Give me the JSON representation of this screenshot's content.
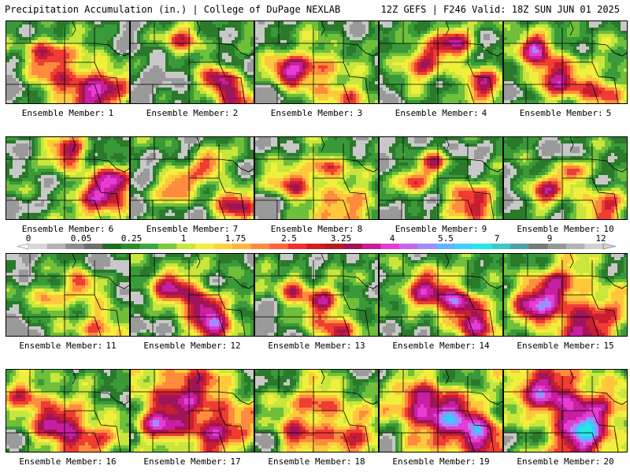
{
  "header": {
    "left_title": "Precipitation Accumulation (in.) | College of DuPage NEXLAB",
    "right_title": "12Z GEFS | F246 Valid: 18Z SUN JUN 01 2025"
  },
  "member_label": "Ensemble Member:",
  "members": [
    {
      "number": "1",
      "intensity": 0.45,
      "seed": 11,
      "hot": [
        [
          0.55,
          0.72,
          0.2
        ],
        [
          0.3,
          0.35,
          0.12
        ],
        [
          0.8,
          0.88,
          0.14
        ]
      ]
    },
    {
      "number": "2",
      "intensity": 0.4,
      "seed": 23,
      "hot": [
        [
          0.45,
          0.2,
          0.12
        ],
        [
          0.7,
          0.7,
          0.1
        ],
        [
          0.85,
          0.9,
          0.14
        ]
      ]
    },
    {
      "number": "3",
      "intensity": 0.55,
      "seed": 37,
      "hot": [
        [
          0.45,
          0.55,
          0.14
        ],
        [
          0.75,
          0.95,
          0.12
        ],
        [
          0.25,
          0.6,
          0.1
        ]
      ]
    },
    {
      "number": "4",
      "intensity": 0.55,
      "seed": 41,
      "hot": [
        [
          0.35,
          0.45,
          0.14
        ],
        [
          0.8,
          0.75,
          0.12
        ],
        [
          0.6,
          0.2,
          0.1
        ]
      ]
    },
    {
      "number": "5",
      "intensity": 0.62,
      "seed": 53,
      "hot": [
        [
          0.4,
          0.65,
          0.16
        ],
        [
          0.8,
          0.85,
          0.12
        ],
        [
          0.25,
          0.3,
          0.1
        ]
      ]
    },
    {
      "number": "6",
      "intensity": 0.5,
      "seed": 67,
      "hot": [
        [
          0.5,
          0.15,
          0.12
        ],
        [
          0.75,
          0.75,
          0.18
        ],
        [
          0.88,
          0.5,
          0.1
        ]
      ]
    },
    {
      "number": "7",
      "intensity": 0.45,
      "seed": 71,
      "hot": [
        [
          0.35,
          0.6,
          0.12
        ],
        [
          0.85,
          0.8,
          0.14
        ],
        [
          0.65,
          0.3,
          0.1
        ]
      ]
    },
    {
      "number": "8",
      "intensity": 0.5,
      "seed": 83,
      "hot": [
        [
          0.3,
          0.55,
          0.12
        ],
        [
          0.75,
          0.85,
          0.16
        ],
        [
          0.55,
          0.35,
          0.1
        ]
      ]
    },
    {
      "number": "9",
      "intensity": 0.42,
      "seed": 97,
      "hot": [
        [
          0.75,
          0.8,
          0.16
        ],
        [
          0.25,
          0.55,
          0.1
        ],
        [
          0.45,
          0.3,
          0.08
        ]
      ]
    },
    {
      "number": "10",
      "intensity": 0.45,
      "seed": 101,
      "hot": [
        [
          0.3,
          0.65,
          0.12
        ],
        [
          0.8,
          0.8,
          0.14
        ],
        [
          0.55,
          0.4,
          0.08
        ]
      ]
    },
    {
      "number": "11",
      "intensity": 0.42,
      "seed": 113,
      "hot": [
        [
          0.75,
          0.9,
          0.14
        ],
        [
          0.35,
          0.55,
          0.1
        ],
        [
          0.6,
          0.35,
          0.1
        ]
      ]
    },
    {
      "number": "12",
      "intensity": 0.55,
      "seed": 127,
      "hot": [
        [
          0.65,
          0.9,
          0.16
        ],
        [
          0.35,
          0.4,
          0.14
        ],
        [
          0.6,
          0.6,
          0.1
        ]
      ]
    },
    {
      "number": "13",
      "intensity": 0.5,
      "seed": 131,
      "hot": [
        [
          0.65,
          0.9,
          0.14
        ],
        [
          0.3,
          0.4,
          0.1
        ],
        [
          0.55,
          0.55,
          0.1
        ]
      ]
    },
    {
      "number": "14",
      "intensity": 0.58,
      "seed": 149,
      "hot": [
        [
          0.4,
          0.45,
          0.16
        ],
        [
          0.8,
          0.85,
          0.14
        ],
        [
          0.65,
          0.55,
          0.1
        ]
      ]
    },
    {
      "number": "15",
      "intensity": 0.68,
      "seed": 157,
      "hot": [
        [
          0.7,
          0.85,
          0.2
        ],
        [
          0.4,
          0.4,
          0.16
        ],
        [
          0.2,
          0.7,
          0.12
        ]
      ]
    },
    {
      "number": "16",
      "intensity": 0.62,
      "seed": 163,
      "hot": [
        [
          0.6,
          0.85,
          0.18
        ],
        [
          0.15,
          0.3,
          0.12
        ],
        [
          0.4,
          0.6,
          0.12
        ]
      ]
    },
    {
      "number": "17",
      "intensity": 0.75,
      "seed": 179,
      "hot": [
        [
          0.4,
          0.25,
          0.2
        ],
        [
          0.7,
          0.7,
          0.18
        ],
        [
          0.2,
          0.7,
          0.12
        ]
      ]
    },
    {
      "number": "18",
      "intensity": 0.6,
      "seed": 181,
      "hot": [
        [
          0.5,
          0.4,
          0.14
        ],
        [
          0.8,
          0.85,
          0.16
        ],
        [
          0.3,
          0.8,
          0.12
        ]
      ]
    },
    {
      "number": "19",
      "intensity": 0.72,
      "seed": 191,
      "hot": [
        [
          0.55,
          0.6,
          0.2
        ],
        [
          0.3,
          0.4,
          0.14
        ],
        [
          0.8,
          0.8,
          0.14
        ]
      ]
    },
    {
      "number": "20",
      "intensity": 0.78,
      "seed": 197,
      "hot": [
        [
          0.35,
          0.25,
          0.2
        ],
        [
          0.7,
          0.55,
          0.18
        ],
        [
          0.6,
          0.9,
          0.14
        ]
      ]
    }
  ],
  "colorbar": {
    "tick_labels": [
      "0",
      "0.05",
      "0.25",
      "1",
      "1.75",
      "2.5",
      "3.25",
      "4",
      "5.5",
      "7",
      "9",
      "12"
    ],
    "colors": [
      "#d8d8d8",
      "#b4b4b4",
      "#8c8c8c",
      "#6f6f6f",
      "#1f6f1f",
      "#2e8b2e",
      "#3ca83c",
      "#7ec83c",
      "#c8e63c",
      "#f0f03c",
      "#ffd23c",
      "#ffb43c",
      "#ff8c3c",
      "#ff643c",
      "#f03232",
      "#d21e1e",
      "#b41e1e",
      "#a0145a",
      "#c81e96",
      "#e63cd2",
      "#c864f0",
      "#a08cff",
      "#64b4ff",
      "#3cd2ff",
      "#28e6e6",
      "#3cc8c8",
      "#50a0a0",
      "#787878",
      "#969696",
      "#b4b4b4",
      "#d2d2d2"
    ]
  }
}
